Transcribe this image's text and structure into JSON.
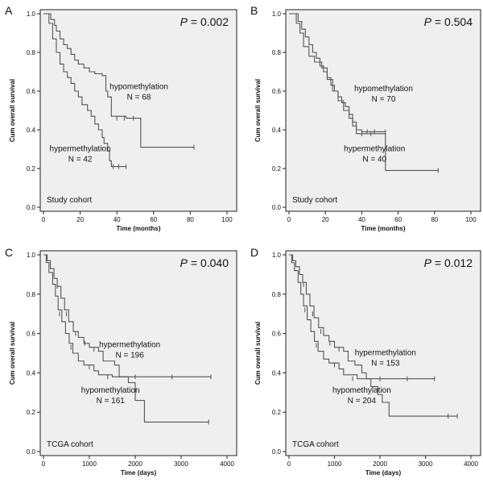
{
  "figure": "Kaplan-Meier overall survival curves by methylation status",
  "chart_data": [
    {
      "type": "line",
      "panel": "A",
      "p_label": "P",
      "p_value": " = 0.002",
      "cohort": "Study cohort",
      "xlabel": "Time (months)",
      "ylabel": "Cum overall survival",
      "xlim": [
        0,
        100
      ],
      "ylim": [
        0,
        1.0
      ],
      "xticks": [
        "0",
        "20",
        "40",
        "60",
        "80",
        "100"
      ],
      "yticks": [
        "0.0",
        "0.2",
        "0.4",
        "0.6",
        "0.8",
        "1.0"
      ],
      "series": [
        {
          "name": "hypomethylation",
          "label_text": "hypomethylation",
          "n_text": "N = 68",
          "points": [
            [
              0,
              1.0
            ],
            [
              4,
              0.97
            ],
            [
              6,
              0.94
            ],
            [
              7,
              0.91
            ],
            [
              9,
              0.87
            ],
            [
              11,
              0.84
            ],
            [
              13,
              0.82
            ],
            [
              15,
              0.79
            ],
            [
              17,
              0.76
            ],
            [
              19,
              0.74
            ],
            [
              22,
              0.72
            ],
            [
              25,
              0.7
            ],
            [
              28,
              0.69
            ],
            [
              32,
              0.68
            ],
            [
              34,
              0.6
            ],
            [
              35,
              0.57
            ],
            [
              37,
              0.47
            ],
            [
              45,
              0.46
            ],
            [
              52,
              0.46
            ],
            [
              53,
              0.31
            ],
            [
              82,
              0.31
            ]
          ],
          "censored": [
            [
              40,
              0.46
            ],
            [
              44,
              0.46
            ],
            [
              49,
              0.46
            ],
            [
              82,
              0.31
            ]
          ]
        },
        {
          "name": "hypermethylation",
          "label_text": "hypermethylation",
          "n_text": "N = 42",
          "points": [
            [
              0,
              1.0
            ],
            [
              3,
              0.95
            ],
            [
              5,
              0.87
            ],
            [
              7,
              0.8
            ],
            [
              9,
              0.74
            ],
            [
              11,
              0.7
            ],
            [
              13,
              0.67
            ],
            [
              15,
              0.64
            ],
            [
              17,
              0.6
            ],
            [
              19,
              0.57
            ],
            [
              21,
              0.53
            ],
            [
              24,
              0.5
            ],
            [
              26,
              0.47
            ],
            [
              28,
              0.43
            ],
            [
              30,
              0.4
            ],
            [
              32,
              0.36
            ],
            [
              33,
              0.33
            ],
            [
              35,
              0.29
            ],
            [
              36,
              0.24
            ],
            [
              37,
              0.21
            ],
            [
              45,
              0.21
            ]
          ],
          "censored": [
            [
              38,
              0.21
            ],
            [
              41,
              0.21
            ],
            [
              45,
              0.21
            ]
          ]
        }
      ],
      "annotations": [
        {
          "series": 0,
          "x": 52,
          "y": 0.61
        },
        {
          "series": 1,
          "x": 20,
          "y": 0.29
        }
      ]
    },
    {
      "type": "line",
      "panel": "B",
      "p_label": "P",
      "p_value": " = 0.504",
      "cohort": "Study cohort",
      "xlabel": "Time (months)",
      "ylabel": "Cum overall survival",
      "xlim": [
        0,
        100
      ],
      "ylim": [
        0,
        1.0
      ],
      "xticks": [
        "0",
        "20",
        "40",
        "60",
        "80",
        "100"
      ],
      "yticks": [
        "0.0",
        "0.2",
        "0.4",
        "0.6",
        "0.8",
        "1.0"
      ],
      "series": [
        {
          "name": "hypomethylation",
          "label_text": "hypomethylation",
          "n_text": "N = 70",
          "points": [
            [
              0,
              1.0
            ],
            [
              5,
              0.96
            ],
            [
              7,
              0.92
            ],
            [
              9,
              0.88
            ],
            [
              11,
              0.84
            ],
            [
              13,
              0.8
            ],
            [
              15,
              0.77
            ],
            [
              17,
              0.73
            ],
            [
              19,
              0.7
            ],
            [
              21,
              0.67
            ],
            [
              23,
              0.63
            ],
            [
              25,
              0.6
            ],
            [
              27,
              0.57
            ],
            [
              29,
              0.54
            ],
            [
              31,
              0.52
            ],
            [
              33,
              0.48
            ],
            [
              35,
              0.44
            ],
            [
              37,
              0.4
            ],
            [
              40,
              0.39
            ],
            [
              45,
              0.39
            ],
            [
              53,
              0.39
            ]
          ],
          "censored": [
            [
              43,
              0.39
            ],
            [
              47,
              0.39
            ],
            [
              53,
              0.39
            ]
          ]
        },
        {
          "name": "hypermethylation",
          "label_text": "hypermethylation",
          "n_text": "N = 40",
          "points": [
            [
              0,
              1.0
            ],
            [
              4,
              0.95
            ],
            [
              6,
              0.9
            ],
            [
              8,
              0.83
            ],
            [
              11,
              0.78
            ],
            [
              14,
              0.75
            ],
            [
              18,
              0.72
            ],
            [
              21,
              0.66
            ],
            [
              24,
              0.6
            ],
            [
              27,
              0.55
            ],
            [
              30,
              0.5
            ],
            [
              33,
              0.46
            ],
            [
              35,
              0.42
            ],
            [
              37,
              0.38
            ],
            [
              48,
              0.38
            ],
            [
              53,
              0.19
            ],
            [
              82,
              0.19
            ]
          ],
          "censored": [
            [
              40,
              0.38
            ],
            [
              45,
              0.38
            ],
            [
              82,
              0.19
            ]
          ]
        }
      ],
      "annotations": [
        {
          "series": 0,
          "x": 52,
          "y": 0.6
        },
        {
          "series": 1,
          "x": 47,
          "y": 0.29
        }
      ]
    },
    {
      "type": "line",
      "panel": "C",
      "p_label": "P",
      "p_value": " = 0.040",
      "cohort": "TCGA cohort",
      "xlabel": "Time (days)",
      "ylabel": "Cum overall survival",
      "xlim": [
        0,
        4000
      ],
      "ylim": [
        0,
        1.0
      ],
      "xticks": [
        "0",
        "1000",
        "2000",
        "3000",
        "4000"
      ],
      "yticks": [
        "0.0",
        "0.2",
        "0.4",
        "0.6",
        "0.8",
        "1.0"
      ],
      "series": [
        {
          "name": "hypermethylation",
          "label_text": "hypermethylation",
          "n_text": "N = 196",
          "points": [
            [
              0,
              1.0
            ],
            [
              80,
              0.97
            ],
            [
              150,
              0.93
            ],
            [
              230,
              0.88
            ],
            [
              300,
              0.84
            ],
            [
              380,
              0.78
            ],
            [
              460,
              0.72
            ],
            [
              550,
              0.66
            ],
            [
              650,
              0.61
            ],
            [
              760,
              0.58
            ],
            [
              880,
              0.55
            ],
            [
              1000,
              0.53
            ],
            [
              1200,
              0.51
            ],
            [
              1300,
              0.46
            ],
            [
              1550,
              0.44
            ],
            [
              1650,
              0.38
            ],
            [
              3650,
              0.38
            ]
          ],
          "censored": [
            [
              300,
              0.84
            ],
            [
              500,
              0.7
            ],
            [
              700,
              0.6
            ],
            [
              900,
              0.55
            ],
            [
              1100,
              0.52
            ],
            [
              2000,
              0.38
            ],
            [
              2800,
              0.38
            ],
            [
              3650,
              0.38
            ]
          ]
        },
        {
          "name": "hypomethylation",
          "label_text": "hypomethylation",
          "n_text": "N = 161",
          "points": [
            [
              0,
              1.0
            ],
            [
              60,
              0.96
            ],
            [
              120,
              0.91
            ],
            [
              200,
              0.85
            ],
            [
              260,
              0.79
            ],
            [
              320,
              0.72
            ],
            [
              400,
              0.66
            ],
            [
              480,
              0.6
            ],
            [
              560,
              0.55
            ],
            [
              640,
              0.5
            ],
            [
              760,
              0.46
            ],
            [
              880,
              0.44
            ],
            [
              1100,
              0.41
            ],
            [
              1200,
              0.39
            ],
            [
              1500,
              0.38
            ],
            [
              1850,
              0.35
            ],
            [
              2000,
              0.26
            ],
            [
              2200,
              0.15
            ],
            [
              3600,
              0.15
            ]
          ],
          "censored": [
            [
              350,
              0.7
            ],
            [
              600,
              0.53
            ],
            [
              1000,
              0.43
            ],
            [
              1400,
              0.38
            ],
            [
              3600,
              0.15
            ]
          ]
        }
      ],
      "annotations": [
        {
          "series": 0,
          "x": 1880,
          "y": 0.53
        },
        {
          "series": 1,
          "x": 1460,
          "y": 0.3
        }
      ]
    },
    {
      "type": "line",
      "panel": "D",
      "p_label": "P",
      "p_value": " = 0.012",
      "cohort": "TCGA cohort",
      "xlabel": "Time (days)",
      "ylabel": "Cum overall survival",
      "xlim": [
        0,
        4000
      ],
      "ylim": [
        0,
        1.0
      ],
      "xticks": [
        "0",
        "1000",
        "2000",
        "3000",
        "4000"
      ],
      "yticks": [
        "0.0",
        "0.2",
        "0.4",
        "0.6",
        "0.8",
        "1.0"
      ],
      "series": [
        {
          "name": "hypermethylation",
          "label_text": "hypermethylation",
          "n_text": "N = 153",
          "points": [
            [
              0,
              1.0
            ],
            [
              80,
              0.97
            ],
            [
              150,
              0.94
            ],
            [
              230,
              0.9
            ],
            [
              300,
              0.86
            ],
            [
              380,
              0.8
            ],
            [
              460,
              0.74
            ],
            [
              550,
              0.68
            ],
            [
              650,
              0.63
            ],
            [
              760,
              0.59
            ],
            [
              880,
              0.56
            ],
            [
              1000,
              0.53
            ],
            [
              1200,
              0.51
            ],
            [
              1300,
              0.46
            ],
            [
              1450,
              0.44
            ],
            [
              1600,
              0.4
            ],
            [
              1700,
              0.37
            ],
            [
              3200,
              0.37
            ]
          ],
          "censored": [
            [
              320,
              0.85
            ],
            [
              520,
              0.7
            ],
            [
              700,
              0.61
            ],
            [
              900,
              0.55
            ],
            [
              1100,
              0.52
            ],
            [
              2000,
              0.37
            ],
            [
              2600,
              0.37
            ],
            [
              3200,
              0.37
            ]
          ]
        },
        {
          "name": "hypomethylation",
          "label_text": "hypomethylation",
          "n_text": "N = 204",
          "points": [
            [
              0,
              1.0
            ],
            [
              60,
              0.96
            ],
            [
              120,
              0.92
            ],
            [
              200,
              0.86
            ],
            [
              260,
              0.8
            ],
            [
              320,
              0.74
            ],
            [
              400,
              0.67
            ],
            [
              480,
              0.61
            ],
            [
              560,
              0.56
            ],
            [
              640,
              0.51
            ],
            [
              760,
              0.47
            ],
            [
              880,
              0.45
            ],
            [
              1100,
              0.42
            ],
            [
              1200,
              0.39
            ],
            [
              1500,
              0.37
            ],
            [
              1800,
              0.33
            ],
            [
              1950,
              0.29
            ],
            [
              2050,
              0.25
            ],
            [
              2200,
              0.18
            ],
            [
              3700,
              0.18
            ]
          ],
          "censored": [
            [
              350,
              0.72
            ],
            [
              600,
              0.54
            ],
            [
              1000,
              0.44
            ],
            [
              1400,
              0.37
            ],
            [
              3500,
              0.18
            ],
            [
              3700,
              0.18
            ]
          ]
        }
      ],
      "annotations": [
        {
          "series": 0,
          "x": 2120,
          "y": 0.49
        },
        {
          "series": 1,
          "x": 1600,
          "y": 0.3
        }
      ]
    }
  ]
}
